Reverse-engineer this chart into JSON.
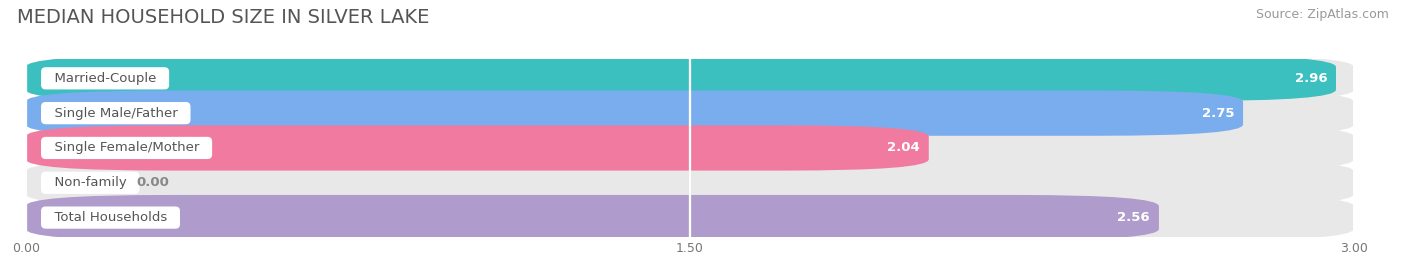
{
  "title": "MEDIAN HOUSEHOLD SIZE IN SILVER LAKE",
  "source": "Source: ZipAtlas.com",
  "categories": [
    "Married-Couple",
    "Single Male/Father",
    "Single Female/Mother",
    "Non-family",
    "Total Households"
  ],
  "values": [
    2.96,
    2.75,
    2.04,
    0.0,
    2.56
  ],
  "bar_colors": [
    "#3bbfbf",
    "#7aadee",
    "#f07aa0",
    "#f5c99a",
    "#b09ccc"
  ],
  "bar_bg_color": "#e8e8e8",
  "xlim": [
    0,
    3.0
  ],
  "xticks": [
    0.0,
    1.5,
    3.0
  ],
  "xtick_labels": [
    "0.00",
    "1.50",
    "3.00"
  ],
  "title_fontsize": 14,
  "source_fontsize": 9,
  "bar_label_fontsize": 9.5,
  "value_fontsize": 9.5,
  "background_color": "#ffffff",
  "grid_color": "#dddddd"
}
